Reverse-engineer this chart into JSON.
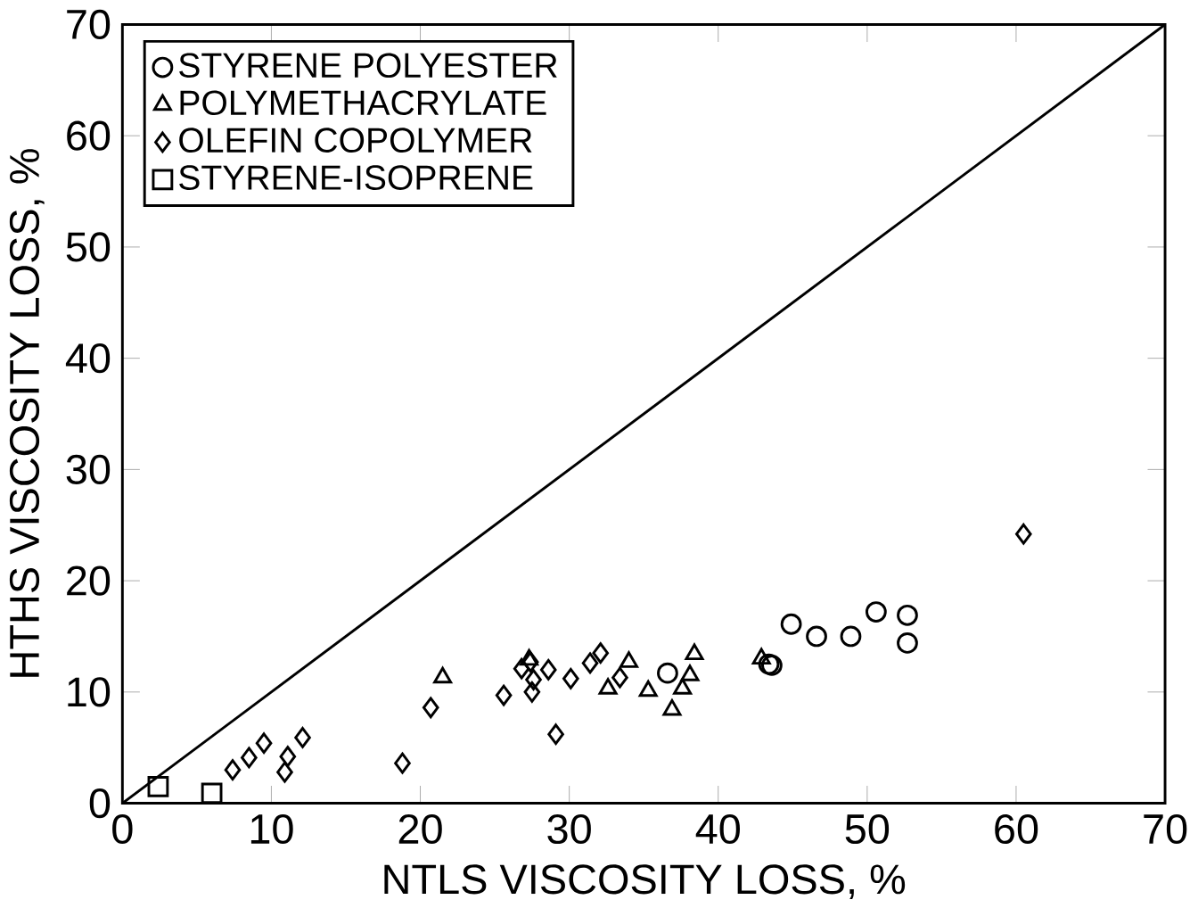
{
  "chart_data": {
    "type": "scatter",
    "xlabel": "NTLS VISCOSITY LOSS, %",
    "ylabel": "HTHS VISCOSITY LOSS, %",
    "xlim": [
      0,
      70
    ],
    "ylim": [
      0,
      70
    ],
    "xticks": [
      0,
      10,
      20,
      30,
      40,
      50,
      60,
      70
    ],
    "yticks": [
      0,
      10,
      20,
      30,
      40,
      50,
      60,
      70
    ],
    "grid": false,
    "legend": "top left",
    "series": [
      {
        "name": "STYRENE POLYESTER",
        "color": "#000000",
        "marker": "circle",
        "x": [
          36.6,
          43.6,
          43.4,
          44.9,
          46.6,
          48.9,
          50.6,
          52.7,
          52.7
        ],
        "values": [
          11.7,
          12.4,
          12.5,
          16.1,
          15.0,
          15.0,
          17.2,
          16.9,
          14.4
        ]
      },
      {
        "name": "POLYMETHACRYLATE",
        "color": "#000000",
        "marker": "triangle",
        "x": [
          21.5,
          27.3,
          32.6,
          34.0,
          35.3,
          36.9,
          37.6,
          38.1,
          38.4,
          42.9
        ],
        "values": [
          11.3,
          12.9,
          10.3,
          12.7,
          10.1,
          8.4,
          10.3,
          11.5,
          13.4,
          13.0
        ]
      },
      {
        "name": "OLEFIN COPOLYMER",
        "color": "#000000",
        "marker": "diamond",
        "x": [
          7.4,
          8.5,
          9.5,
          10.9,
          11.1,
          12.1,
          18.8,
          20.7,
          25.6,
          26.8,
          27.4,
          27.5,
          27.6,
          28.6,
          29.1,
          30.1,
          31.4,
          32.1,
          33.4,
          60.5
        ],
        "values": [
          3.0,
          4.1,
          5.4,
          2.8,
          4.2,
          5.9,
          3.6,
          8.6,
          9.7,
          12.1,
          12.7,
          10.0,
          11.1,
          12.0,
          6.2,
          11.2,
          12.6,
          13.5,
          11.3,
          24.2
        ]
      },
      {
        "name": "STYRENE-ISOPRENE",
        "color": "#000000",
        "marker": "square",
        "x": [
          2.4,
          6.0
        ],
        "values": [
          1.5,
          0.9
        ]
      },
      {
        "type": "line",
        "color": "#000000",
        "marker": "none",
        "x": [
          0,
          70
        ],
        "values": [
          0,
          70
        ]
      }
    ]
  }
}
